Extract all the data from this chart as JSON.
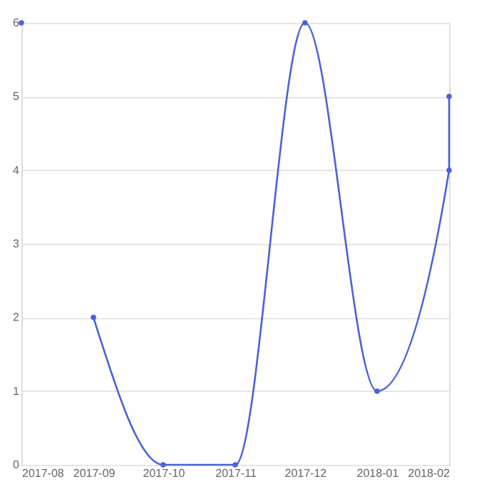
{
  "chart_data": {
    "type": "line",
    "xlim": [
      "2017-08",
      "2018-02"
    ],
    "xticks": [
      "2017-08",
      "2017-09",
      "2017-10",
      "2017-11",
      "2017-12",
      "2018-01",
      "2018-02"
    ],
    "ylim": [
      0,
      6
    ],
    "yticks": [
      0,
      1,
      2,
      3,
      4,
      5,
      6
    ],
    "grid": "y",
    "marker": "circle",
    "line_style": "solid",
    "series": [
      {
        "type": "scatter",
        "color": "#4a62d8",
        "x": [
          "2017-08"
        ],
        "values": [
          6
        ]
      },
      {
        "color": "#4a62d8",
        "x": [
          "2017-09",
          "2017-10",
          "2017-11",
          "2017-12",
          "2018-01",
          "2018-02",
          "2018-02"
        ],
        "values": [
          2,
          0,
          0,
          6,
          1,
          4,
          5
        ]
      }
    ]
  }
}
